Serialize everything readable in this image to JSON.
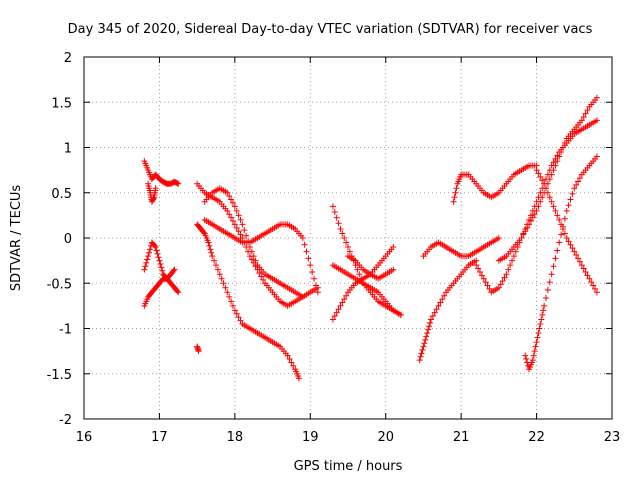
{
  "chart_data": {
    "type": "scatter",
    "title": "Day 345 of 2020, Sidereal Day-to-day VTEC variation (SDTVAR) for receiver vacs",
    "xlabel": "GPS time / hours",
    "ylabel": "SDTVAR / TECUs",
    "xlim": [
      16,
      23
    ],
    "ylim": [
      -2,
      2
    ],
    "xticks": [
      "16",
      "17",
      "18",
      "19",
      "20",
      "21",
      "22",
      "23"
    ],
    "yticks": [
      "-2",
      "-1.5",
      "-1",
      "-0.5",
      "0",
      "0.5",
      "1",
      "1.5",
      "2"
    ],
    "grid": true,
    "marker": "+",
    "color": "#ff0000",
    "series": [
      {
        "name": "s1",
        "x": [
          16.8,
          16.85,
          16.9,
          16.95,
          17.0,
          17.05,
          17.1,
          17.15,
          17.2,
          17.25
        ],
        "y": [
          0.85,
          0.75,
          0.65,
          0.7,
          0.65,
          0.62,
          0.6,
          0.6,
          0.62,
          0.6
        ]
      },
      {
        "name": "s2",
        "x": [
          16.85,
          16.88,
          16.9,
          16.93,
          16.95
        ],
        "y": [
          0.6,
          0.5,
          0.4,
          0.45,
          0.55
        ]
      },
      {
        "name": "s3",
        "x": [
          16.8,
          16.85,
          16.9,
          16.95,
          17.0,
          17.05,
          17.1,
          17.15,
          17.2,
          17.25
        ],
        "y": [
          -0.75,
          -0.65,
          -0.6,
          -0.55,
          -0.5,
          -0.45,
          -0.45,
          -0.5,
          -0.55,
          -0.6
        ]
      },
      {
        "name": "s4",
        "x": [
          16.8,
          16.85,
          16.9,
          16.95,
          17.0,
          17.05,
          17.1,
          17.15,
          17.2
        ],
        "y": [
          -0.35,
          -0.2,
          -0.05,
          -0.1,
          -0.25,
          -0.4,
          -0.45,
          -0.4,
          -0.35
        ]
      },
      {
        "name": "s5",
        "x": [
          17.5,
          17.55,
          17.6,
          17.65,
          17.7,
          17.8,
          17.9,
          18.0,
          18.1,
          18.2,
          18.3,
          18.4,
          18.5,
          18.6,
          18.7,
          18.8,
          18.85
        ],
        "y": [
          0.15,
          0.1,
          0.05,
          -0.05,
          -0.2,
          -0.4,
          -0.6,
          -0.8,
          -0.95,
          -1.0,
          -1.05,
          -1.1,
          -1.15,
          -1.2,
          -1.3,
          -1.45,
          -1.55
        ]
      },
      {
        "name": "s6",
        "x": [
          17.5,
          17.52
        ],
        "y": [
          -1.2,
          -1.25
        ]
      },
      {
        "name": "s7",
        "x": [
          17.5,
          17.6,
          17.7,
          17.8,
          17.9,
          18.0,
          18.1,
          18.2,
          18.3,
          18.4,
          18.5,
          18.6,
          18.7,
          18.8,
          18.9,
          19.0,
          19.1
        ],
        "y": [
          0.6,
          0.5,
          0.45,
          0.4,
          0.3,
          0.15,
          0.0,
          -0.2,
          -0.35,
          -0.5,
          -0.6,
          -0.7,
          -0.75,
          -0.7,
          -0.65,
          -0.6,
          -0.55
        ]
      },
      {
        "name": "s8",
        "x": [
          17.6,
          17.7,
          17.8,
          17.9,
          18.0,
          18.1,
          18.2,
          18.3,
          18.4,
          18.5,
          18.6,
          18.7,
          18.8,
          18.9,
          19.0,
          19.1
        ],
        "y": [
          0.2,
          0.15,
          0.1,
          0.05,
          0.0,
          -0.05,
          -0.05,
          0.0,
          0.05,
          0.1,
          0.15,
          0.15,
          0.1,
          0.0,
          -0.3,
          -0.6
        ]
      },
      {
        "name": "s9",
        "x": [
          17.6,
          17.7,
          17.8,
          17.9,
          18.0,
          18.1,
          18.2,
          18.3,
          18.4,
          18.5,
          18.6,
          18.7,
          18.8,
          18.9
        ],
        "y": [
          0.4,
          0.5,
          0.55,
          0.5,
          0.35,
          0.15,
          -0.1,
          -0.3,
          -0.4,
          -0.45,
          -0.5,
          -0.55,
          -0.6,
          -0.65
        ]
      },
      {
        "name": "s10",
        "x": [
          19.3,
          19.4,
          19.5,
          19.6,
          19.7,
          19.8,
          19.9,
          20.0,
          20.1,
          20.2
        ],
        "y": [
          0.35,
          0.1,
          -0.1,
          -0.3,
          -0.5,
          -0.6,
          -0.7,
          -0.75,
          -0.8,
          -0.85
        ]
      },
      {
        "name": "s11",
        "x": [
          19.3,
          19.4,
          19.5,
          19.6,
          19.7,
          19.8,
          19.9,
          20.0,
          20.1
        ],
        "y": [
          -0.9,
          -0.75,
          -0.6,
          -0.5,
          -0.45,
          -0.4,
          -0.3,
          -0.2,
          -0.1
        ]
      },
      {
        "name": "s12",
        "x": [
          19.3,
          19.4,
          19.5,
          19.6,
          19.7,
          19.8,
          19.9,
          20.0,
          20.1,
          20.2
        ],
        "y": [
          -0.3,
          -0.35,
          -0.4,
          -0.45,
          -0.5,
          -0.55,
          -0.6,
          -0.7,
          -0.8,
          -0.85
        ]
      },
      {
        "name": "s13",
        "x": [
          19.5,
          19.6,
          19.7,
          19.8,
          19.9,
          20.0,
          20.1
        ],
        "y": [
          -0.2,
          -0.25,
          -0.35,
          -0.4,
          -0.45,
          -0.4,
          -0.35
        ]
      },
      {
        "name": "s14",
        "x": [
          20.45,
          20.5,
          20.55,
          20.6,
          20.7,
          20.8,
          20.9,
          21.0,
          21.1,
          21.2
        ],
        "y": [
          -1.35,
          -1.2,
          -1.05,
          -0.9,
          -0.75,
          -0.6,
          -0.5,
          -0.4,
          -0.3,
          -0.25
        ]
      },
      {
        "name": "s15",
        "x": [
          20.5,
          20.6,
          20.7,
          20.8,
          20.9,
          21.0,
          21.1,
          21.2,
          21.3,
          21.4,
          21.5
        ],
        "y": [
          -0.2,
          -0.1,
          -0.05,
          -0.1,
          -0.15,
          -0.2,
          -0.2,
          -0.15,
          -0.1,
          -0.05,
          0.0
        ]
      },
      {
        "name": "s16",
        "x": [
          20.9,
          20.95,
          21.0,
          21.1,
          21.2,
          21.3,
          21.4,
          21.5,
          21.6,
          21.7,
          21.8,
          21.9,
          22.0
        ],
        "y": [
          0.4,
          0.6,
          0.7,
          0.7,
          0.6,
          0.5,
          0.45,
          0.5,
          0.6,
          0.7,
          0.75,
          0.8,
          0.8
        ]
      },
      {
        "name": "s17",
        "x": [
          21.2,
          21.3,
          21.4,
          21.5,
          21.6,
          21.7,
          21.8,
          21.9,
          22.0,
          22.1,
          22.2,
          22.3,
          22.4,
          22.5,
          22.6,
          22.7,
          22.8
        ],
        "y": [
          -0.3,
          -0.45,
          -0.6,
          -0.55,
          -0.4,
          -0.2,
          0.0,
          0.2,
          0.4,
          0.6,
          0.8,
          0.95,
          1.05,
          1.15,
          1.2,
          1.25,
          1.3
        ]
      },
      {
        "name": "s18",
        "x": [
          21.5,
          21.6,
          21.7,
          21.8,
          21.9,
          22.0,
          22.1,
          22.2,
          22.3,
          22.4,
          22.5,
          22.6,
          22.7,
          22.8
        ],
        "y": [
          -0.25,
          -0.2,
          -0.1,
          0.0,
          0.15,
          0.3,
          0.5,
          0.7,
          0.9,
          1.1,
          1.2,
          1.3,
          1.45,
          1.55
        ]
      },
      {
        "name": "s19",
        "x": [
          21.85,
          21.9,
          21.95,
          22.0,
          22.05,
          22.1,
          22.2,
          22.3,
          22.4,
          22.5,
          22.6,
          22.7,
          22.8
        ],
        "y": [
          -1.3,
          -1.45,
          -1.35,
          -1.15,
          -0.95,
          -0.75,
          -0.4,
          -0.05,
          0.3,
          0.55,
          0.7,
          0.8,
          0.9
        ]
      },
      {
        "name": "s20",
        "x": [
          22.0,
          22.1,
          22.2,
          22.3,
          22.4,
          22.5,
          22.6,
          22.7,
          22.8
        ],
        "y": [
          0.75,
          0.6,
          0.4,
          0.2,
          0.0,
          -0.15,
          -0.3,
          -0.45,
          -0.6
        ]
      }
    ]
  }
}
